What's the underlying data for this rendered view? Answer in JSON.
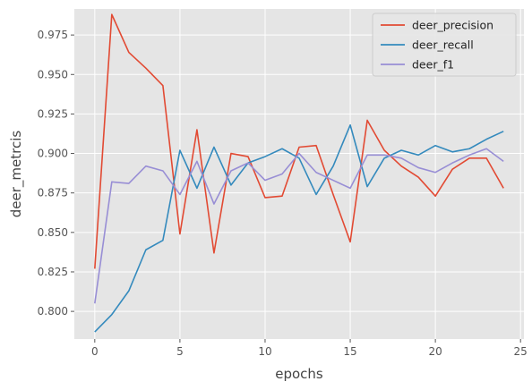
{
  "chart_data": {
    "type": "line",
    "title": "",
    "xlabel": "epochs",
    "ylabel": "deer_metrcis",
    "xlim": [
      -1.2,
      25.2
    ],
    "ylim": [
      0.7825,
      0.9915
    ],
    "xticks": [
      0,
      5,
      10,
      15,
      20,
      25
    ],
    "yticks": [
      0.8,
      0.825,
      0.85,
      0.875,
      0.9,
      0.925,
      0.95,
      0.975
    ],
    "ytick_labels": [
      "0.800",
      "0.825",
      "0.850",
      "0.875",
      "0.900",
      "0.925",
      "0.950",
      "0.975"
    ],
    "grid": true,
    "legend_position": "top-right",
    "x": [
      0,
      1,
      2,
      3,
      4,
      5,
      6,
      7,
      8,
      9,
      10,
      11,
      12,
      13,
      14,
      15,
      16,
      17,
      18,
      19,
      20,
      21,
      22,
      23,
      24
    ],
    "series": [
      {
        "name": "deer_precision",
        "color": "#E24A33",
        "values": [
          0.827,
          0.988,
          0.964,
          0.954,
          0.943,
          0.849,
          0.915,
          0.837,
          0.9,
          0.898,
          0.872,
          0.873,
          0.904,
          0.905,
          0.874,
          0.844,
          0.921,
          0.902,
          0.892,
          0.885,
          0.873,
          0.89,
          0.897,
          0.897,
          0.878
        ]
      },
      {
        "name": "deer_recall",
        "color": "#348ABD",
        "values": [
          0.787,
          0.798,
          0.813,
          0.839,
          0.845,
          0.902,
          0.878,
          0.904,
          0.88,
          0.894,
          0.898,
          0.903,
          0.897,
          0.874,
          0.892,
          0.918,
          0.879,
          0.897,
          0.902,
          0.899,
          0.905,
          0.901,
          0.903,
          0.909,
          0.914
        ]
      },
      {
        "name": "deer_f1",
        "color": "#988ED5",
        "values": [
          0.805,
          0.882,
          0.881,
          0.892,
          0.889,
          0.874,
          0.895,
          0.868,
          0.889,
          0.894,
          0.883,
          0.887,
          0.9,
          0.888,
          0.883,
          0.878,
          0.899,
          0.899,
          0.897,
          0.891,
          0.888,
          0.894,
          0.899,
          0.903,
          0.895
        ]
      }
    ]
  }
}
